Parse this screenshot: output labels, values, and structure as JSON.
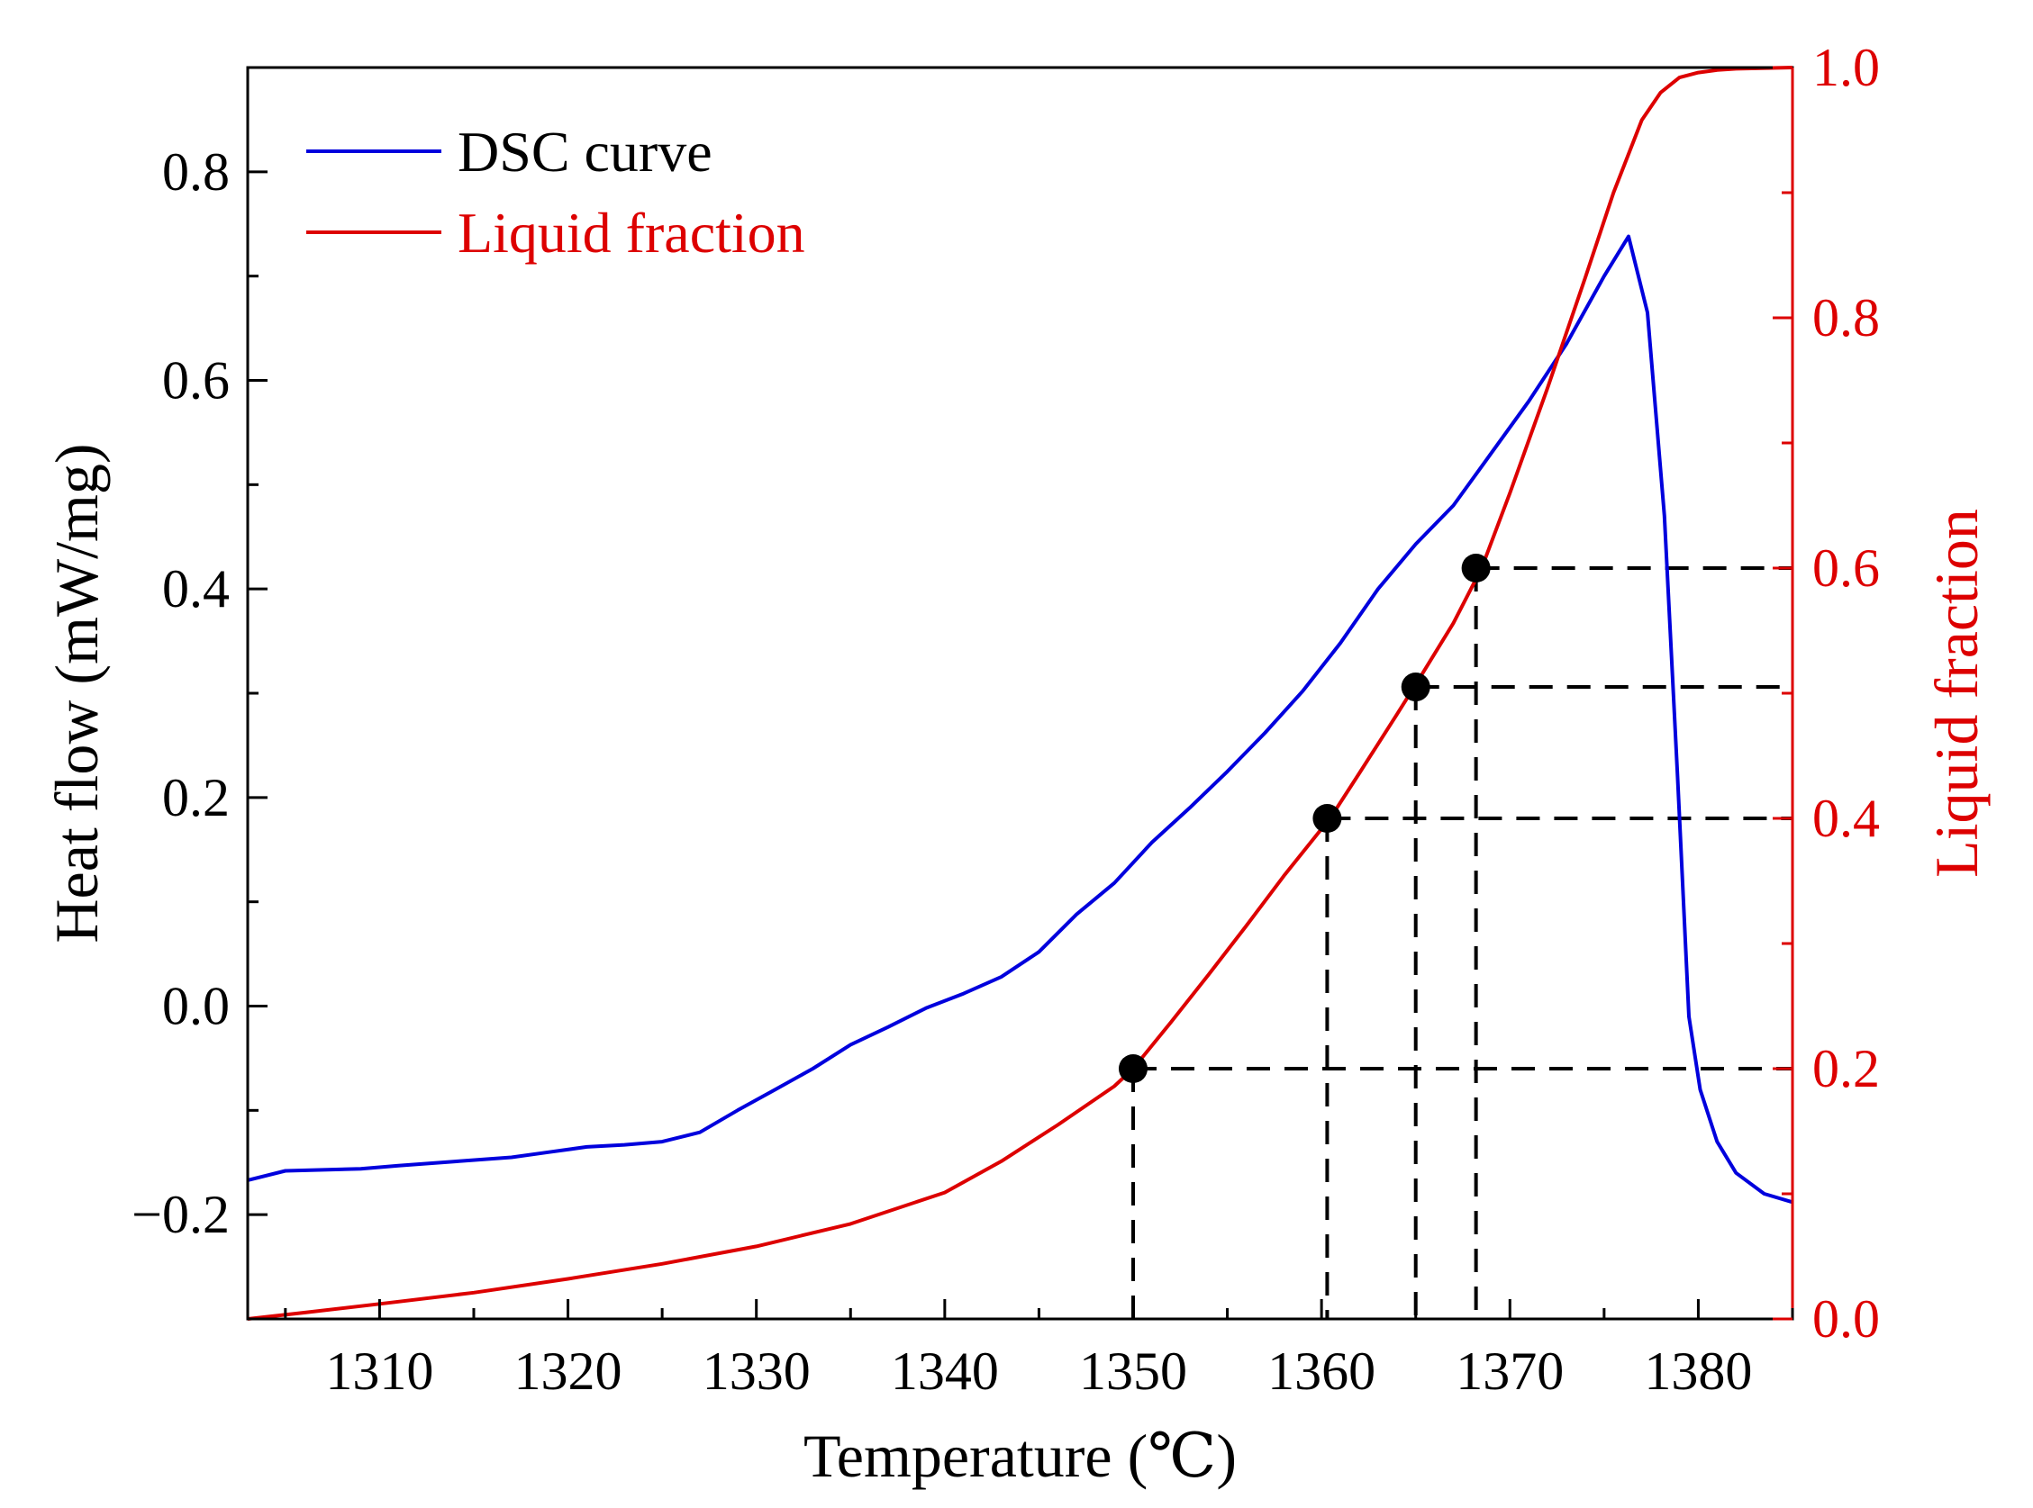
{
  "chart_data": {
    "type": "line",
    "title": "",
    "xlabel": "Temperature (℃)",
    "ylabel": "Heat flow (mW/mg)",
    "y2label": "Liquid fraction",
    "xlim": [
      1303,
      1385
    ],
    "ylim": [
      -0.3,
      0.9
    ],
    "y2lim": [
      0.0,
      1.0
    ],
    "grid": false,
    "legend_position": "top-left",
    "x_ticks": [
      1310,
      1320,
      1330,
      1340,
      1350,
      1360,
      1370,
      1380
    ],
    "x_tick_labels": [
      "1310",
      "1320",
      "1330",
      "1340",
      "1350",
      "1360",
      "1370",
      "1380"
    ],
    "y_ticks": [
      -0.2,
      0.0,
      0.2,
      0.4,
      0.6,
      0.8
    ],
    "y_tick_labels": [
      "−0.2",
      "0.0",
      "0.2",
      "0.4",
      "0.6",
      "0.8"
    ],
    "y2_ticks": [
      0.0,
      0.2,
      0.4,
      0.6,
      0.8,
      1.0
    ],
    "y2_tick_labels": [
      "0.0",
      "0.2",
      "0.4",
      "0.6",
      "0.8",
      "1.0"
    ],
    "colors": {
      "dsc": "#0000dd",
      "liquid": "#dd0000",
      "axis": "#000000",
      "right_axis": "#dd0000",
      "markers": "#000000"
    },
    "series": [
      {
        "name": "DSC curve",
        "axis": "left",
        "x": [
          1303,
          1305,
          1307,
          1309,
          1311,
          1314,
          1317,
          1319,
          1321,
          1323,
          1325,
          1327,
          1329,
          1331,
          1333,
          1335,
          1337,
          1339,
          1341,
          1343,
          1345,
          1347,
          1349,
          1351,
          1353,
          1355,
          1357,
          1359,
          1361,
          1363,
          1365,
          1367,
          1369,
          1371,
          1373,
          1375,
          1376.3,
          1377.3,
          1378.2,
          1378.9,
          1379.5,
          1380.1,
          1381,
          1382,
          1383.5,
          1385
        ],
        "y": [
          -0.167,
          -0.158,
          -0.157,
          -0.156,
          -0.153,
          -0.149,
          -0.145,
          -0.14,
          -0.135,
          -0.133,
          -0.13,
          -0.121,
          -0.1,
          -0.08,
          -0.06,
          -0.037,
          -0.02,
          -0.002,
          0.012,
          0.028,
          0.052,
          0.088,
          0.118,
          0.157,
          0.19,
          0.225,
          0.262,
          0.302,
          0.348,
          0.4,
          0.443,
          0.48,
          0.53,
          0.58,
          0.635,
          0.7,
          0.738,
          0.665,
          0.47,
          0.22,
          -0.01,
          -0.08,
          -0.13,
          -0.16,
          -0.18,
          -0.188
        ]
      },
      {
        "name": "Liquid fraction",
        "axis": "right",
        "x": [
          1303,
          1306,
          1310,
          1315,
          1320,
          1325,
          1330,
          1335,
          1340,
          1343,
          1346,
          1349,
          1350,
          1352,
          1354,
          1356,
          1358,
          1360.5,
          1362,
          1364,
          1365,
          1367,
          1368.5,
          1370,
          1372,
          1374,
          1375.5,
          1377,
          1378,
          1379,
          1380,
          1381,
          1382,
          1385
        ],
        "y": [
          0.0,
          0.005,
          0.012,
          0.021,
          0.032,
          0.044,
          0.058,
          0.076,
          0.101,
          0.126,
          0.155,
          0.186,
          0.2,
          0.237,
          0.275,
          0.314,
          0.354,
          0.401,
          0.436,
          0.483,
          0.507,
          0.556,
          0.6,
          0.66,
          0.744,
          0.832,
          0.9,
          0.958,
          0.98,
          0.992,
          0.996,
          0.998,
          0.999,
          1.0
        ]
      }
    ],
    "markers": [
      {
        "x": 1350.0,
        "y2": 0.2
      },
      {
        "x": 1360.3,
        "y2": 0.4
      },
      {
        "x": 1365.0,
        "y2": 0.505
      },
      {
        "x": 1368.2,
        "y2": 0.6
      }
    ]
  }
}
